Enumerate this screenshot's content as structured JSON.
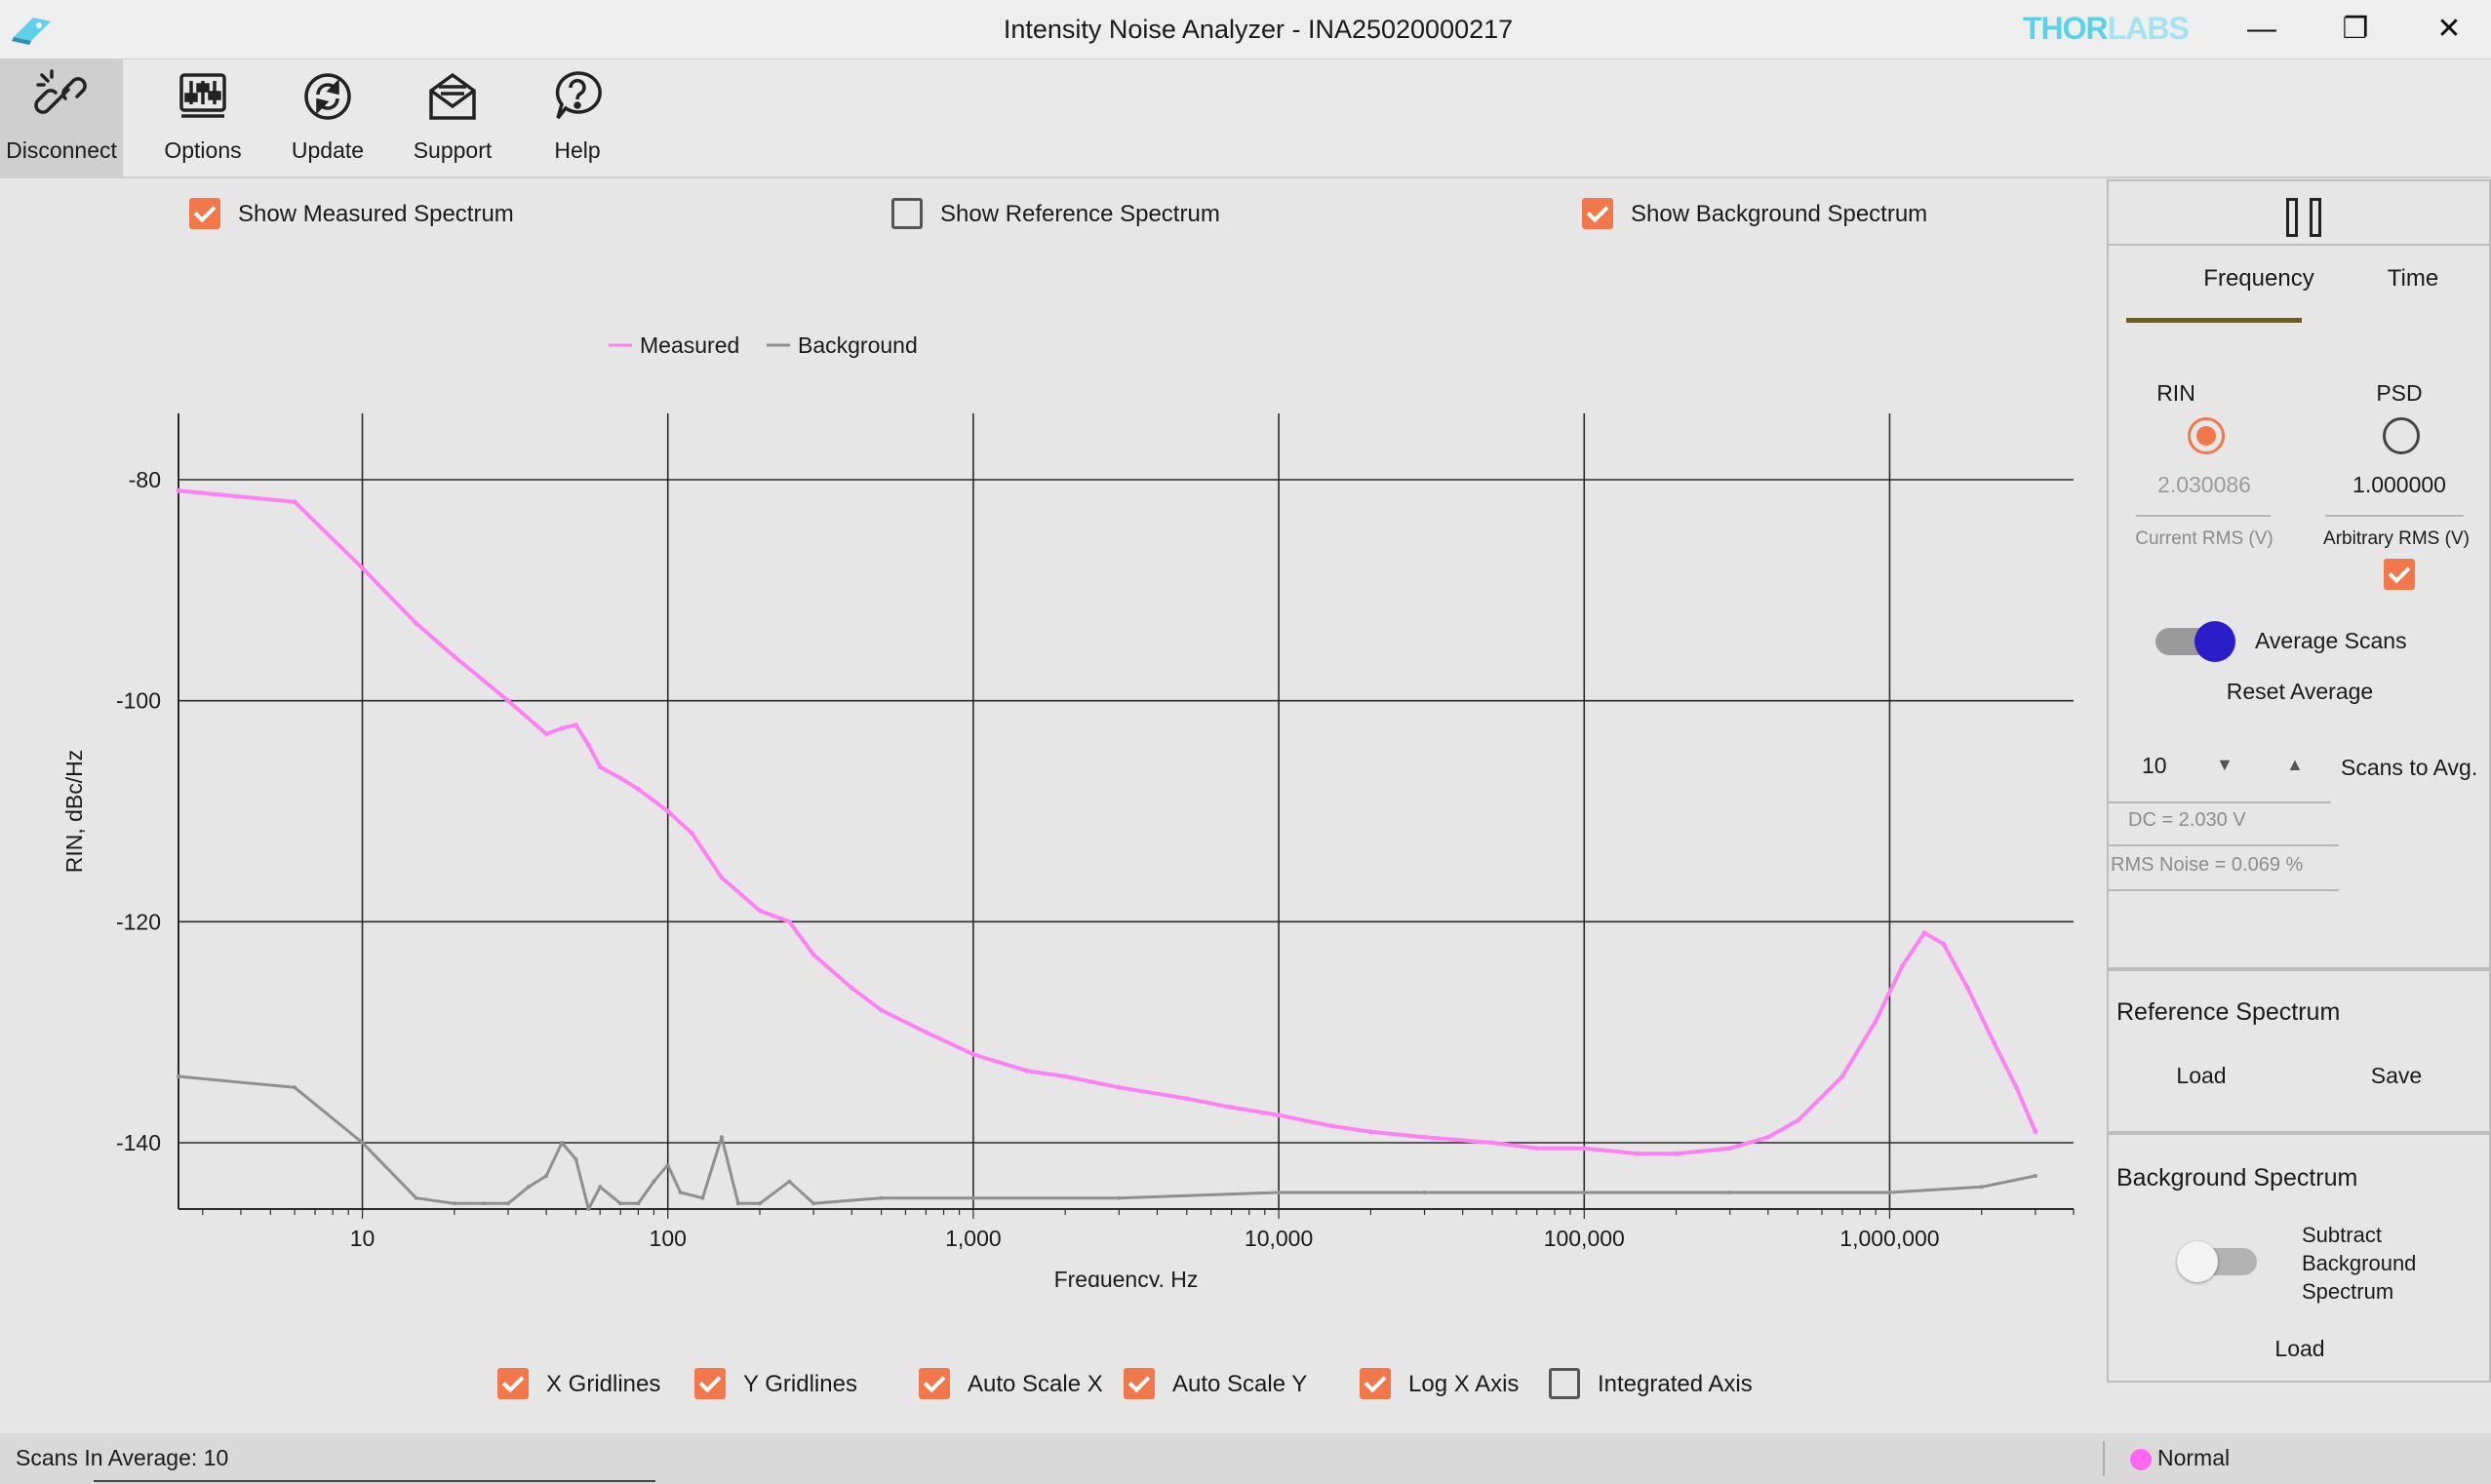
{
  "window": {
    "title": "Intensity Noise Analyzer - INA25020000217",
    "brand_a": "THOR",
    "brand_b": "LABS",
    "minimize_glyph": "—",
    "restore_glyph": "❐",
    "close_glyph": "✕"
  },
  "toolbar": {
    "items": [
      {
        "label": "Disconnect",
        "icon": "disconnect-link-icon"
      },
      {
        "label": "Options",
        "icon": "sliders-icon"
      },
      {
        "label": "Update",
        "icon": "refresh-icon"
      },
      {
        "label": "Support",
        "icon": "envelope-icon"
      },
      {
        "label": "Help",
        "icon": "help-icon"
      }
    ]
  },
  "spectrum_toggles": {
    "measured": {
      "label": "Show Measured Spectrum",
      "checked": true
    },
    "reference": {
      "label": "Show Reference Spectrum",
      "checked": false
    },
    "background": {
      "label": "Show Background Spectrum",
      "checked": true
    }
  },
  "chart_options": {
    "x_gridlines": {
      "label": "X Gridlines",
      "checked": true
    },
    "y_gridlines": {
      "label": "Y Gridlines",
      "checked": true
    },
    "auto_scale_x": {
      "label": "Auto Scale X",
      "checked": true
    },
    "auto_scale_y": {
      "label": "Auto Scale Y",
      "checked": true
    },
    "log_x_axis": {
      "label": "Log X Axis",
      "checked": true
    },
    "integrated_axis": {
      "label": "Integrated Axis",
      "checked": false
    }
  },
  "chart_data": {
    "type": "line",
    "xlabel": "Frequency, Hz",
    "ylabel": "RIN, dBc/Hz",
    "x_scale": "log",
    "xlim": [
      2.5,
      4000000
    ],
    "ylim": [
      -146,
      -74
    ],
    "x_ticks": [
      10,
      100,
      1000,
      10000,
      100000,
      1000000
    ],
    "x_tick_labels": [
      "10",
      "100",
      "1,000",
      "10,000",
      "100,000",
      "1,000,000"
    ],
    "y_ticks": [
      -80,
      -100,
      -120,
      -140
    ],
    "y_tick_labels": [
      "-80",
      "-100",
      "-120",
      "-140"
    ],
    "grid": true,
    "legend_position": "top-left",
    "series": [
      {
        "name": "Measured",
        "color": "#ff7ff5",
        "x": [
          2.5,
          6,
          10,
          15,
          20,
          30,
          40,
          45,
          50,
          55,
          60,
          70,
          80,
          100,
          120,
          150,
          200,
          250,
          300,
          400,
          500,
          700,
          1000,
          1500,
          2000,
          3000,
          5000,
          7000,
          10000,
          15000,
          20000,
          30000,
          50000,
          70000,
          100000,
          150000,
          200000,
          300000,
          400000,
          500000,
          700000,
          900000,
          1100000,
          1300000,
          1500000,
          1800000,
          2200000,
          2600000,
          3000000
        ],
        "y": [
          -81,
          -82,
          -88,
          -93,
          -96,
          -100,
          -103,
          -102.5,
          -102.2,
          -104,
          -106,
          -107,
          -108,
          -110,
          -112,
          -116,
          -119,
          -120,
          -123,
          -126,
          -128,
          -130,
          -132,
          -133.5,
          -134,
          -135,
          -136,
          -136.8,
          -137.5,
          -138.5,
          -139,
          -139.5,
          -140,
          -140.5,
          -140.5,
          -141,
          -141,
          -140.5,
          -139.5,
          -138,
          -134,
          -129,
          -124,
          -121,
          -122,
          -126,
          -131,
          -135,
          -139
        ]
      },
      {
        "name": "Background",
        "color": "#8f8f8f",
        "x": [
          2.5,
          6,
          10,
          15,
          20,
          25,
          30,
          35,
          40,
          45,
          50,
          55,
          60,
          70,
          80,
          90,
          100,
          110,
          130,
          150,
          170,
          200,
          250,
          300,
          500,
          1000,
          3000,
          10000,
          30000,
          100000,
          300000,
          1000000,
          2000000,
          3000000
        ],
        "y": [
          -134,
          -135,
          -140,
          -145,
          -145.5,
          -145.5,
          -145.5,
          -144,
          -143,
          -140,
          -141.5,
          -146,
          -144,
          -145.5,
          -145.5,
          -143.5,
          -142,
          -144.5,
          -145,
          -139.5,
          -145.5,
          -145.5,
          -143.5,
          -145.5,
          -145,
          -145,
          -145,
          -144.5,
          -144.5,
          -144.5,
          -144.5,
          -144.5,
          -144,
          -143
        ]
      }
    ]
  },
  "right_panel": {
    "tabs": [
      {
        "label": "Frequency",
        "active": true
      },
      {
        "label": "Time",
        "active": false
      }
    ],
    "rin": {
      "label": "RIN",
      "value": "2.030086",
      "sublabel": "Current RMS (V)",
      "selected": true
    },
    "psd": {
      "label": "PSD",
      "value": "1.000000",
      "sublabel": "Arbitrary RMS (V)",
      "selected": false,
      "checked": true
    },
    "average_scans": {
      "label": "Average Scans",
      "enabled": true
    },
    "reset_average": "Reset Average",
    "scans_to_avg": {
      "value": "10",
      "label": "Scans to Avg.",
      "down_glyph": "▼",
      "up_glyph": "▲"
    },
    "dc": "DC = 2.030 V",
    "rms_noise": "RMS Noise = 0.069 %",
    "reference": {
      "title": "Reference Spectrum",
      "load": "Load",
      "save": "Save"
    },
    "background": {
      "title": "Background Spectrum",
      "subtract_line1": "Subtract",
      "subtract_line2": "Background",
      "subtract_line3": "Spectrum",
      "subtract_enabled": false,
      "load": "Load"
    }
  },
  "status": {
    "scans_in_average": "Scans In Average: 10",
    "state": "Normal",
    "state_color": "#ff66f2"
  }
}
